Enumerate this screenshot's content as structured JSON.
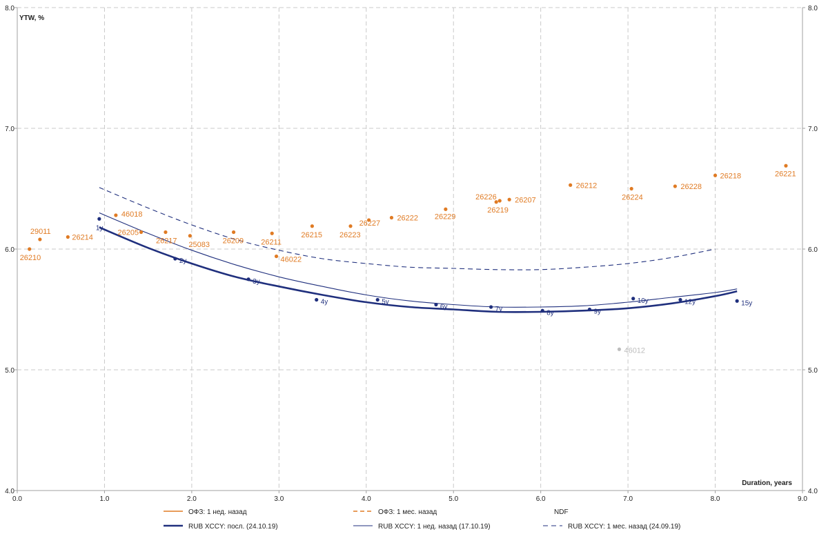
{
  "chart_data": {
    "type": "scatter",
    "title": "",
    "ylabel": "YTW, %",
    "xlabel": "Duration, years",
    "xlim": [
      0,
      9
    ],
    "ylim": [
      4,
      8
    ],
    "x_ticks": [
      "0.0",
      "1.0",
      "2.0",
      "3.0",
      "4.0",
      "5.0",
      "6.0",
      "7.0",
      "8.0",
      "9.0"
    ],
    "y_ticks": [
      "4.0",
      "5.0",
      "6.0",
      "7.0",
      "8.0"
    ],
    "grid": true,
    "legend_position": "bottom",
    "colors": {
      "ofz": "#e07b24",
      "xccy": "#1f2f7d",
      "grey": "#bdbdbd",
      "grid": "#c8c8c8",
      "axis": "#a0a0a0",
      "text": "#222222"
    },
    "legend": [
      {
        "label": "ОФЗ: 1 нед. назад",
        "style": "ofz-solid"
      },
      {
        "label": "ОФЗ: 1 мес. назад",
        "style": "ofz-dashed"
      },
      {
        "label": "NDF",
        "style": "none"
      },
      {
        "label": "RUB XCCY: посл. (24.10.19)",
        "style": "xccy-bold"
      },
      {
        "label": "RUB XCCY: 1 нед. назад (17.10.19)",
        "style": "xccy-thin"
      },
      {
        "label": "RUB XCCY: 1 мес. назад (24.09.19)",
        "style": "xccy-dashed"
      }
    ],
    "ofz_points": [
      {
        "label": "26210",
        "x": 0.14,
        "y": 6.0
      },
      {
        "label": "29011",
        "x": 0.26,
        "y": 6.08
      },
      {
        "label": "26214",
        "x": 0.58,
        "y": 6.1
      },
      {
        "label": "46018",
        "x": 1.13,
        "y": 6.28
      },
      {
        "label": "26205",
        "x": 1.42,
        "y": 6.14
      },
      {
        "label": "26217",
        "x": 1.7,
        "y": 6.14
      },
      {
        "label": "25083",
        "x": 1.98,
        "y": 6.11
      },
      {
        "label": "26209",
        "x": 2.48,
        "y": 6.14
      },
      {
        "label": "26211",
        "x": 2.92,
        "y": 6.13
      },
      {
        "label": "46022",
        "x": 2.97,
        "y": 5.94
      },
      {
        "label": "26215",
        "x": 3.38,
        "y": 6.19
      },
      {
        "label": "26223",
        "x": 3.82,
        "y": 6.19
      },
      {
        "label": "26227",
        "x": 4.03,
        "y": 6.24
      },
      {
        "label": "26222",
        "x": 4.29,
        "y": 6.26
      },
      {
        "label": "26229",
        "x": 4.91,
        "y": 6.33
      },
      {
        "label": "26226",
        "x": 5.49,
        "y": 6.39
      },
      {
        "label": "26219",
        "x": 5.53,
        "y": 6.4
      },
      {
        "label": "26207",
        "x": 5.64,
        "y": 6.41
      },
      {
        "label": "26212",
        "x": 6.34,
        "y": 6.53
      },
      {
        "label": "26224",
        "x": 7.04,
        "y": 6.5
      },
      {
        "label": "26228",
        "x": 7.54,
        "y": 6.52
      },
      {
        "label": "26218",
        "x": 8.0,
        "y": 6.61
      },
      {
        "label": "26221",
        "x": 8.81,
        "y": 6.69
      }
    ],
    "grey_points": [
      {
        "label": "46012",
        "x": 6.9,
        "y": 5.17
      }
    ],
    "xccy_points": [
      {
        "label": "1y",
        "x": 0.94,
        "y": 6.25
      },
      {
        "label": "2y",
        "x": 1.81,
        "y": 5.92
      },
      {
        "label": "3y",
        "x": 2.65,
        "y": 5.75
      },
      {
        "label": "4y",
        "x": 3.43,
        "y": 5.58
      },
      {
        "label": "5y",
        "x": 4.13,
        "y": 5.58
      },
      {
        "label": "6y",
        "x": 4.8,
        "y": 5.54
      },
      {
        "label": "7y",
        "x": 5.43,
        "y": 5.52
      },
      {
        "label": "8y",
        "x": 6.02,
        "y": 5.49
      },
      {
        "label": "9y",
        "x": 6.56,
        "y": 5.5
      },
      {
        "label": "10y",
        "x": 7.06,
        "y": 5.59
      },
      {
        "label": "12y",
        "x": 7.6,
        "y": 5.58
      },
      {
        "label": "15y",
        "x": 8.25,
        "y": 5.57
      }
    ],
    "series": [
      {
        "name": "RUB XCCY: посл. (24.10.19)",
        "style": "bold",
        "x": [
          0.94,
          1.5,
          2.0,
          2.5,
          3.0,
          3.5,
          4.0,
          4.5,
          5.0,
          5.5,
          6.0,
          6.5,
          7.0,
          7.5,
          8.0,
          8.25
        ],
        "y": [
          6.18,
          6.01,
          5.88,
          5.77,
          5.69,
          5.62,
          5.56,
          5.52,
          5.5,
          5.48,
          5.48,
          5.49,
          5.51,
          5.55,
          5.61,
          5.65
        ]
      },
      {
        "name": "RUB XCCY: 1 нед. назад (17.10.19)",
        "style": "thin",
        "x": [
          0.94,
          1.5,
          2.0,
          2.5,
          3.0,
          3.5,
          4.0,
          4.5,
          5.0,
          5.5,
          6.0,
          6.5,
          7.0,
          7.5,
          8.0,
          8.25
        ],
        "y": [
          6.3,
          6.13,
          5.99,
          5.87,
          5.77,
          5.69,
          5.62,
          5.57,
          5.54,
          5.52,
          5.52,
          5.53,
          5.56,
          5.6,
          5.64,
          5.67
        ]
      },
      {
        "name": "RUB XCCY: 1 мес. назад (24.09.19)",
        "style": "dashed",
        "x": [
          0.94,
          1.5,
          2.0,
          2.5,
          3.0,
          3.5,
          4.0,
          4.5,
          5.0,
          5.5,
          6.0,
          6.5,
          7.0,
          7.5,
          8.0
        ],
        "y": [
          6.51,
          6.34,
          6.2,
          6.08,
          5.99,
          5.92,
          5.88,
          5.85,
          5.84,
          5.83,
          5.83,
          5.85,
          5.88,
          5.93,
          6.0
        ]
      }
    ]
  }
}
